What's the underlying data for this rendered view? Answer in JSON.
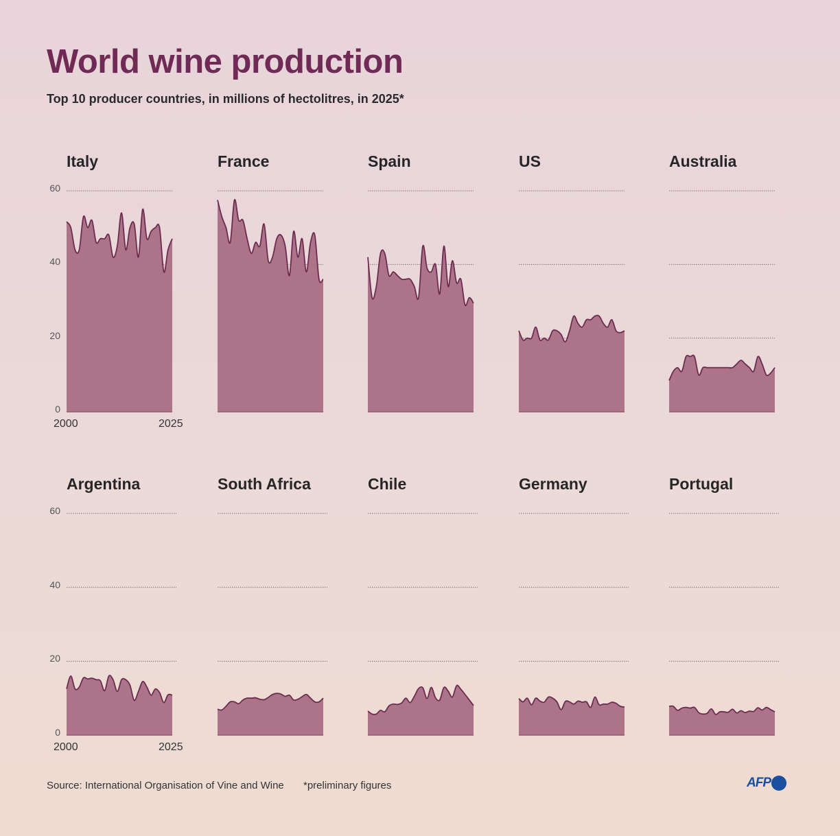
{
  "title": "World wine production",
  "subtitle": "Top 10 producer countries, in millions of hectolitres, in 2025*",
  "source": "Source: International Organisation of Vine and Wine",
  "note": "*preliminary figures",
  "logo": "AFP",
  "colors": {
    "fill": "#ad7389",
    "line": "#6b2c4f",
    "title": "#6f2a55",
    "logo": "#1a4fa0"
  },
  "chart_data": {
    "type": "area",
    "layout": "small multiples, 2 rows x 5 columns",
    "ylim": [
      0,
      60
    ],
    "y_ticks": [
      "0",
      "20",
      "40",
      "60"
    ],
    "x_range": [
      2000,
      2025
    ],
    "x_tick_labels": [
      "2000",
      "2025"
    ],
    "grid": true,
    "years": [
      2000,
      2001,
      2002,
      2003,
      2004,
      2005,
      2006,
      2007,
      2008,
      2009,
      2010,
      2011,
      2012,
      2013,
      2014,
      2015,
      2016,
      2017,
      2018,
      2019,
      2020,
      2021,
      2022,
      2023,
      2024,
      2025
    ],
    "panels": [
      {
        "country": "Italy",
        "values": [
          51.6,
          50,
          44,
          44,
          53,
          50,
          52,
          46,
          47,
          47,
          48,
          42,
          45,
          54,
          44,
          50,
          51,
          42,
          55,
          47,
          49,
          50,
          50,
          38,
          44,
          47
        ]
      },
      {
        "country": "France",
        "values": [
          57.5,
          53,
          50,
          46,
          57.5,
          52,
          52,
          47,
          43,
          46,
          45,
          51,
          41,
          42,
          47,
          48,
          45,
          37,
          49,
          42,
          47,
          38,
          46,
          48,
          36,
          36
        ]
      },
      {
        "country": "Spain",
        "values": [
          42,
          31,
          34,
          43,
          43,
          37,
          38,
          37,
          36,
          36,
          36,
          34,
          31,
          45,
          39,
          38,
          40,
          32,
          45,
          34,
          41,
          35,
          36,
          29,
          31,
          29.5
        ]
      },
      {
        "country": "US",
        "values": [
          22,
          19.5,
          20,
          20,
          23,
          19.5,
          20,
          19.5,
          22,
          22,
          21,
          19,
          22,
          26,
          24,
          23,
          25,
          25,
          26,
          26,
          24,
          23,
          25,
          22,
          21.5,
          22
        ]
      },
      {
        "country": "Australia",
        "values": [
          8.5,
          11,
          12,
          11,
          15,
          15,
          15,
          10,
          12,
          12,
          12,
          12,
          12,
          12,
          12,
          12,
          13,
          14,
          13,
          12,
          11,
          15,
          13,
          10,
          10.5,
          12
        ]
      },
      {
        "country": "Argentina",
        "values": [
          12.5,
          16,
          12.5,
          13,
          15.5,
          15.2,
          15.4,
          15,
          14.7,
          12,
          16,
          15,
          11.8,
          15,
          15,
          13.5,
          9.4,
          11.8,
          14.5,
          13,
          10.8,
          12.5,
          11.5,
          8.8,
          10.9,
          10.8
        ]
      },
      {
        "country": "South Africa",
        "values": [
          7,
          6.8,
          7.8,
          9,
          9,
          8.5,
          9.5,
          10,
          10,
          10.1,
          9.7,
          9.6,
          10.2,
          11,
          11.3,
          11.1,
          10.5,
          10.8,
          9.5,
          9.7,
          10.4,
          11,
          10,
          9,
          9,
          10
        ]
      },
      {
        "country": "Chile",
        "values": [
          6.5,
          5.7,
          5.7,
          6.7,
          6.3,
          7.9,
          8.4,
          8.3,
          8.7,
          10,
          8.8,
          10.5,
          12.6,
          12.8,
          9.9,
          12.9,
          10.1,
          9.5,
          12.9,
          11.9,
          10.3,
          13.4,
          12.4,
          11,
          9.5,
          8
        ]
      },
      {
        "country": "Germany",
        "values": [
          9.9,
          9,
          10,
          8.2,
          10,
          9.2,
          8.9,
          10.3,
          10,
          9,
          6.9,
          9.1,
          9,
          8.4,
          9.2,
          8.9,
          9,
          7.5,
          10.3,
          8.2,
          8.4,
          8.4,
          8.9,
          8.6,
          7.8,
          7.6
        ]
      },
      {
        "country": "Portugal",
        "values": [
          7.8,
          7.8,
          6.7,
          7.3,
          7.5,
          7.3,
          7.5,
          6.1,
          5.7,
          5.9,
          7.1,
          5.6,
          6.3,
          6.3,
          6.2,
          7,
          6,
          6.6,
          6.1,
          6.5,
          6.4,
          7.4,
          6.8,
          7.5,
          6.9,
          6.3
        ]
      }
    ]
  }
}
